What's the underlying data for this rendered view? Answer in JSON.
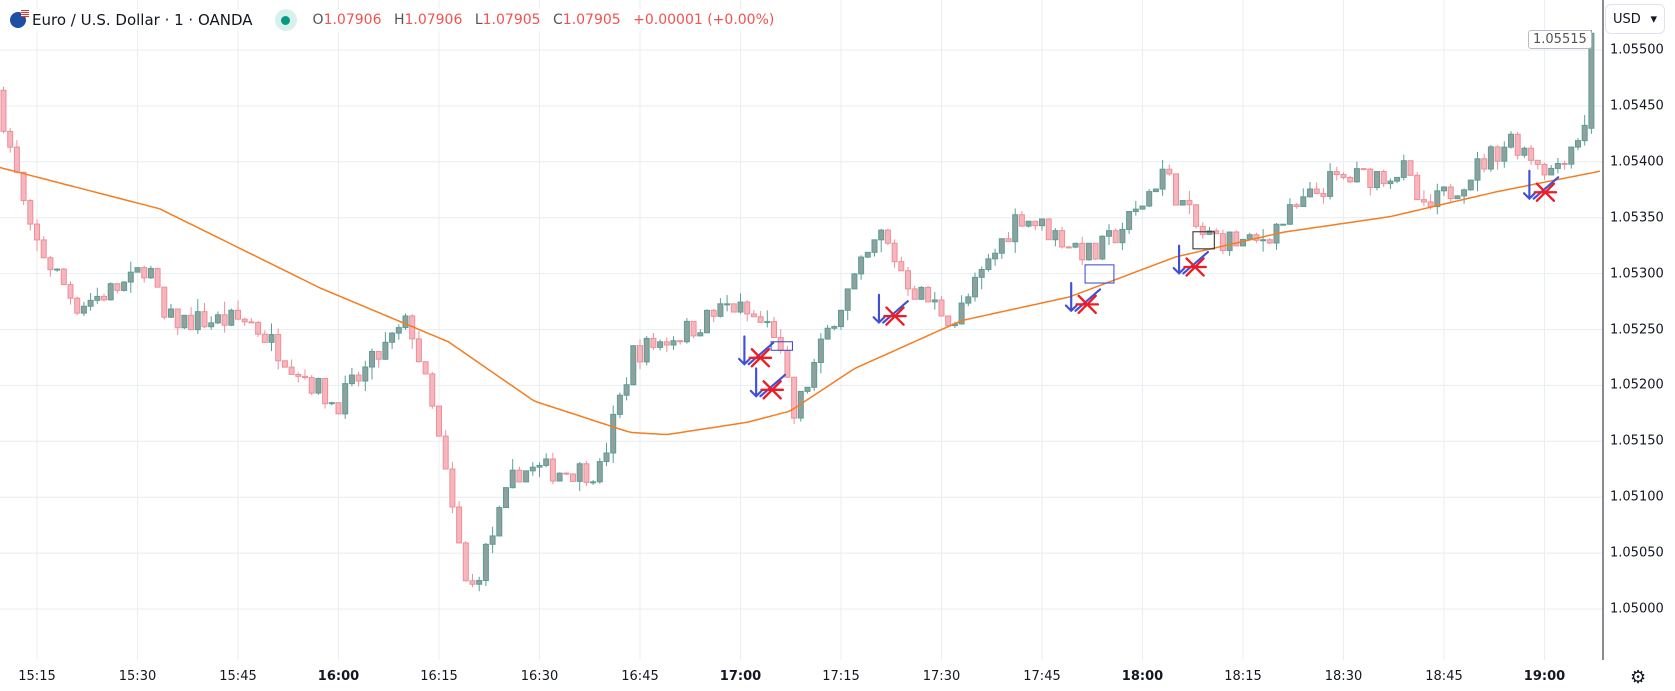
{
  "header": {
    "symbol_title": "Euro / U.S. Dollar · 1 · OANDA",
    "open_label": "O",
    "open": "1.07906",
    "high_label": "H",
    "high": "1.07906",
    "low_label": "L",
    "low": "1.07905",
    "close_label": "C",
    "close": "1.07905",
    "change": "+0.00001 (+0.00%)",
    "market_status": "open"
  },
  "currency_selector": {
    "value": "USD",
    "chevron": "▾"
  },
  "price_axis": {
    "labels": [
      "1.05500",
      "1.05450",
      "1.05400",
      "1.05350",
      "1.05300",
      "1.05250",
      "1.05200",
      "1.05150",
      "1.05100",
      "1.05050",
      "1.05000"
    ],
    "hidden_last_price": "1.05515"
  },
  "time_axis": {
    "labels": [
      {
        "t": "15:15",
        "m": 15,
        "bold": false
      },
      {
        "t": "15:30",
        "m": 30,
        "bold": false
      },
      {
        "t": "15:45",
        "m": 45,
        "bold": false
      },
      {
        "t": "16:00",
        "m": 60,
        "bold": true
      },
      {
        "t": "16:15",
        "m": 75,
        "bold": false
      },
      {
        "t": "16:30",
        "m": 90,
        "bold": false
      },
      {
        "t": "16:45",
        "m": 105,
        "bold": false
      },
      {
        "t": "17:00",
        "m": 120,
        "bold": true
      },
      {
        "t": "17:15",
        "m": 135,
        "bold": false
      },
      {
        "t": "17:30",
        "m": 150,
        "bold": false
      },
      {
        "t": "17:45",
        "m": 165,
        "bold": false
      },
      {
        "t": "18:00",
        "m": 180,
        "bold": true
      },
      {
        "t": "18:15",
        "m": 195,
        "bold": false
      },
      {
        "t": "18:30",
        "m": 210,
        "bold": false
      },
      {
        "t": "18:45",
        "m": 225,
        "bold": false
      },
      {
        "t": "19:00",
        "m": 240,
        "bold": true
      }
    ],
    "settings_icon": "gear-icon"
  },
  "colors": {
    "up": "#5a9e95",
    "up_fill": "#8fa19f",
    "down": "#ee8f98",
    "down_fill": "#f7b6bd",
    "ma": "#f57c1f",
    "grid": "#e8eef2",
    "annot_blue": "#3f4fd8",
    "annot_red": "#ee1c25"
  },
  "chart_data": {
    "type": "candlestick",
    "minute_range": [
      10,
      248
    ],
    "price_path": [
      [
        10,
        1.05464
      ],
      [
        15,
        1.05335
      ],
      [
        22,
        1.05272
      ],
      [
        30,
        1.05292
      ],
      [
        32.5,
        1.05311
      ],
      [
        35,
        1.05258
      ],
      [
        47.7,
        1.05258
      ],
      [
        60.5,
        1.05182
      ],
      [
        71.6,
        1.05258
      ],
      [
        75.6,
        1.05163
      ],
      [
        80.4,
        1.0501
      ],
      [
        87.6,
        1.05124
      ],
      [
        100,
        1.05124
      ],
      [
        105,
        1.05229
      ],
      [
        113,
        1.05249
      ],
      [
        119.5,
        1.05272
      ],
      [
        126,
        1.05249
      ],
      [
        129,
        1.05172
      ],
      [
        135,
        1.05263
      ],
      [
        142,
        1.05335
      ],
      [
        146.6,
        1.05287
      ],
      [
        153,
        1.05258
      ],
      [
        162.5,
        1.05354
      ],
      [
        173.7,
        1.05315
      ],
      [
        180,
        1.05354
      ],
      [
        184,
        1.05392
      ],
      [
        189.6,
        1.05335
      ],
      [
        197.6,
        1.05325
      ],
      [
        208.8,
        1.05382
      ],
      [
        220,
        1.05392
      ],
      [
        223,
        1.05354
      ],
      [
        236,
        1.05421
      ],
      [
        242,
        1.05392
      ],
      [
        246.8,
        1.0543
      ]
    ],
    "last_candle": {
      "open": 1.0543,
      "high": 1.05518,
      "low": 1.05425,
      "close": 1.05515
    },
    "moving_average": [
      [
        9.4,
        1.05395
      ],
      [
        33.3,
        1.05358
      ],
      [
        57.3,
        1.05287
      ],
      [
        76.4,
        1.05239
      ],
      [
        89.2,
        1.05186
      ],
      [
        103.5,
        1.05158
      ],
      [
        109,
        1.05156
      ],
      [
        121,
        1.05167
      ],
      [
        127.4,
        1.05177
      ],
      [
        137,
        1.05215
      ],
      [
        153,
        1.05258
      ],
      [
        169,
        1.05279
      ],
      [
        185,
        1.05315
      ],
      [
        201,
        1.05337
      ],
      [
        217,
        1.05351
      ],
      [
        232.7,
        1.05373
      ],
      [
        248.6,
        1.05392
      ]
    ],
    "ylim": [
      1.04965,
      1.05545
    ]
  }
}
